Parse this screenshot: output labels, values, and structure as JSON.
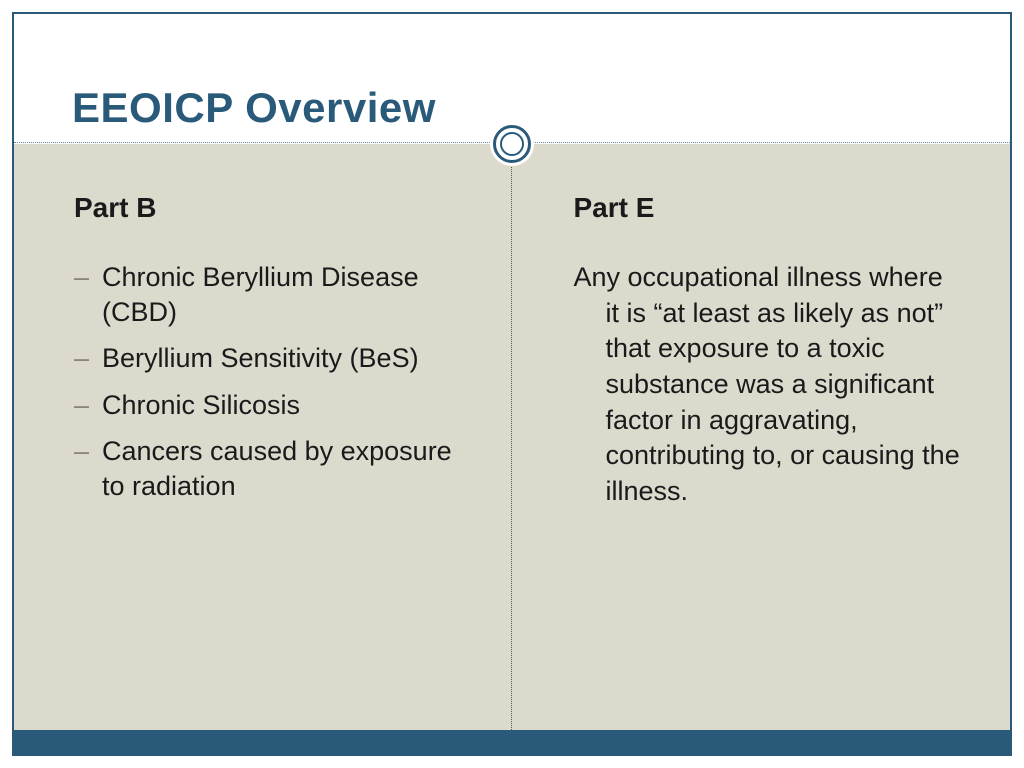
{
  "colors": {
    "accent": "#2a5a7a",
    "body_bg": "#dcdacd",
    "bullet_dash": "#8a8574",
    "text": "#1a1a1a",
    "dotted": "#6a8a9a"
  },
  "slide": {
    "title": "EEOICP Overview",
    "title_fontsize": 42
  },
  "left": {
    "heading": "Part B",
    "items": [
      "Chronic Beryllium Disease (CBD)",
      "Beryllium Sensitivity (BeS)",
      "Chronic Silicosis",
      "Cancers caused by exposure to radiation"
    ]
  },
  "right": {
    "heading": "Part E",
    "paragraph": "Any occupational illness where it is “at least as likely as not” that exposure to a toxic substance was a significant factor in aggravating, contributing to, or causing the illness."
  },
  "typography": {
    "heading_fontsize": 28,
    "body_fontsize": 27,
    "font_family": "Arial"
  }
}
